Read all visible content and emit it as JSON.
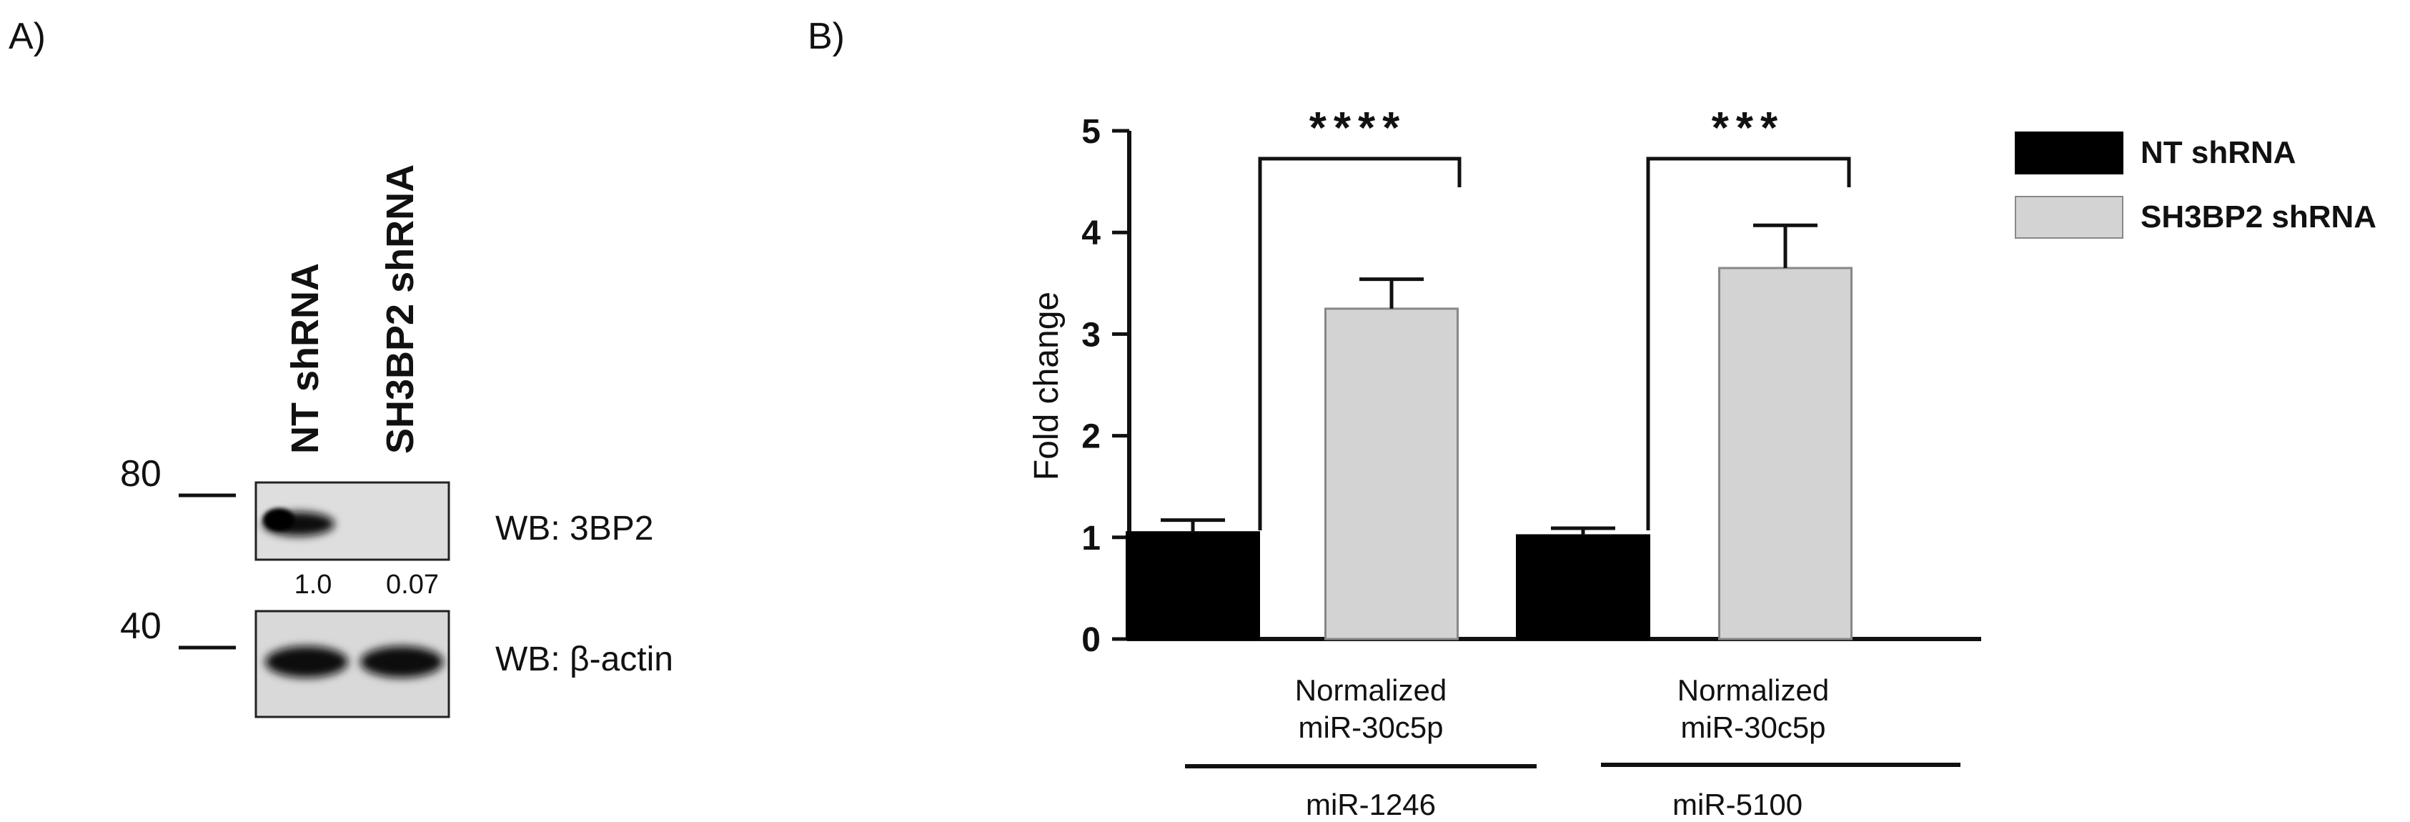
{
  "panel_a": {
    "label": "A)",
    "lane_labels": [
      "NT shRNA",
      "SH3BP2 shRNA"
    ],
    "markers": [
      "80",
      "40"
    ],
    "blots": [
      {
        "name": "WB: 3BP2",
        "band_intensity": [
          1.0,
          0.0
        ]
      },
      {
        "name": "WB: β-actin",
        "band_intensity": [
          1.0,
          1.0
        ]
      }
    ],
    "quantification": [
      "1.0",
      "0.07"
    ]
  },
  "panel_b": {
    "label": "B)",
    "legend": [
      {
        "name": "NT shRNA",
        "color": "#000000"
      },
      {
        "name": "SH3BP2 shRNA",
        "color": "#d3d3d3"
      }
    ],
    "group_labels": [
      {
        "line1": "Normalized",
        "line2": "miR-30c5p",
        "sub": "miR-1246"
      },
      {
        "line1": "Normalized",
        "line2": "miR-30c5p",
        "sub": "miR-5100"
      }
    ],
    "significance": [
      "****",
      "***"
    ]
  },
  "chart_data": {
    "type": "bar",
    "categories": [
      "miR-1246",
      "miR-5100"
    ],
    "series": [
      {
        "name": "NT shRNA",
        "color": "#000000",
        "values": [
          1.05,
          1.02
        ],
        "error": [
          0.12,
          0.07
        ]
      },
      {
        "name": "SH3BP2 shRNA",
        "color": "#d3d3d3",
        "values": [
          3.25,
          3.65
        ],
        "error": [
          0.29,
          0.42
        ]
      }
    ],
    "ylabel": "Fold change",
    "ylim": [
      0,
      5
    ],
    "yticks": [
      "0",
      "1",
      "2",
      "3",
      "4",
      "5"
    ],
    "grid": false,
    "legend_position": "right"
  }
}
